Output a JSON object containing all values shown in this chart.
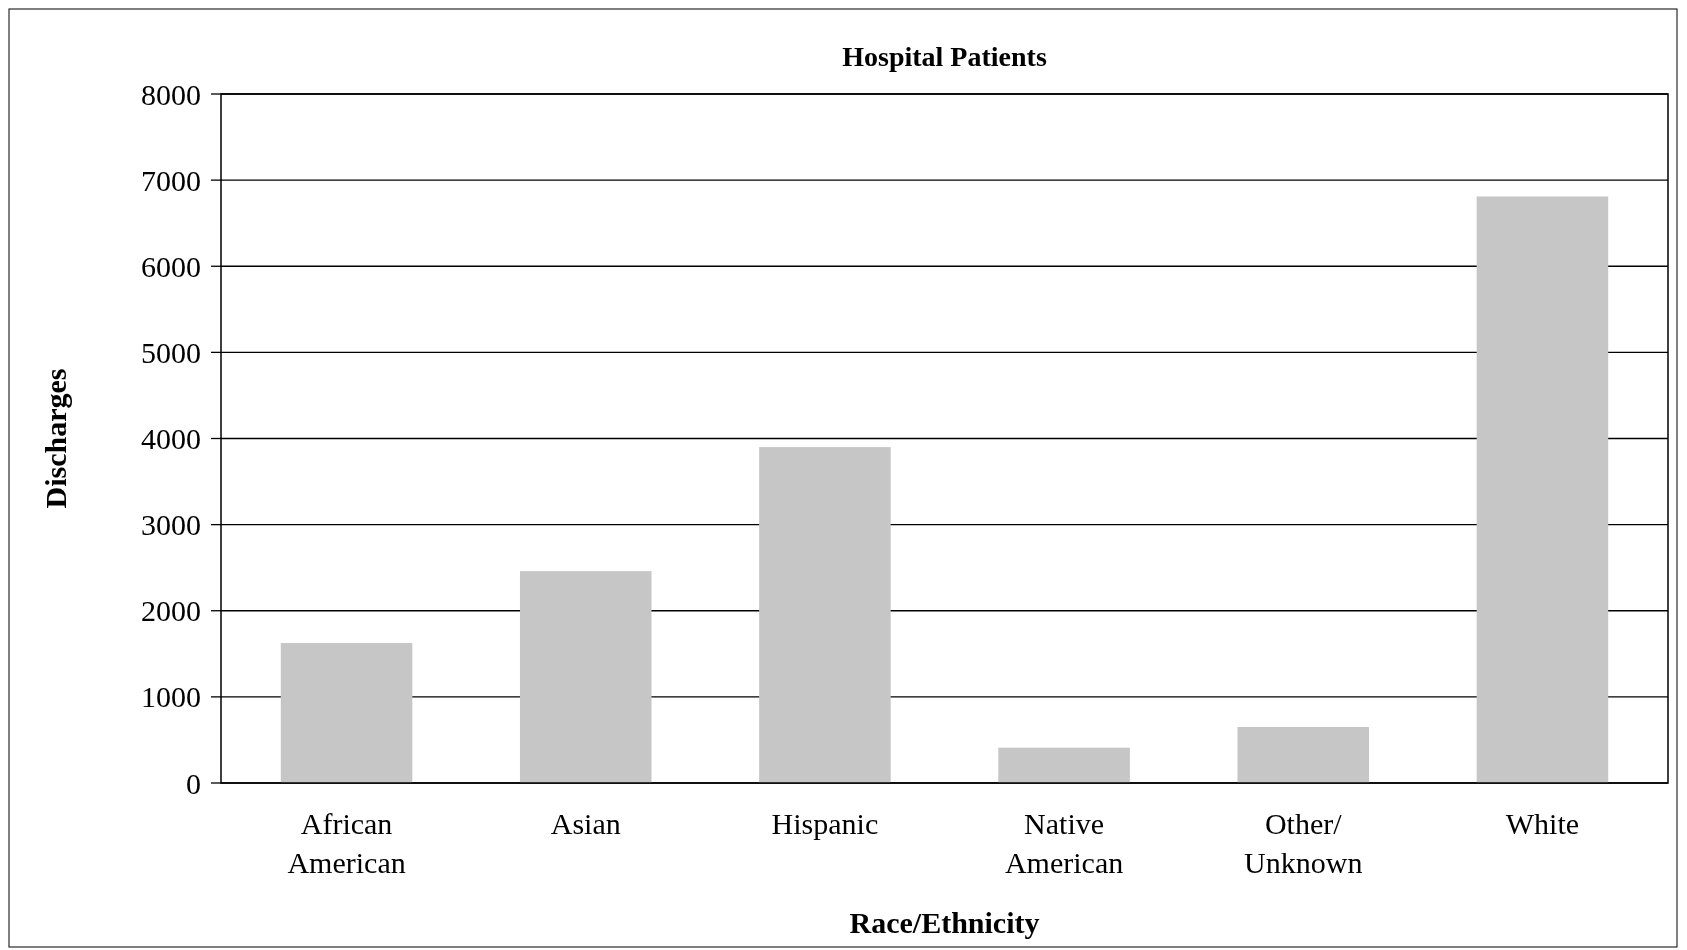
{
  "chart_data": {
    "type": "bar",
    "title": "Hospital Patients",
    "xlabel": "Race/Ethnicity",
    "ylabel": "Discharges",
    "categories": [
      "African\nAmerican",
      "Asian",
      "Hispanic",
      "Native\nAmerican",
      "Other/\nUnknown",
      "White"
    ],
    "values": [
      1625,
      2460,
      3900,
      410,
      650,
      6810
    ],
    "color": "#c6c6c6",
    "ylim": [
      0,
      8000
    ],
    "yticks": [
      0,
      1000,
      2000,
      3000,
      4000,
      5000,
      6000,
      7000,
      8000
    ],
    "grid": "y"
  }
}
